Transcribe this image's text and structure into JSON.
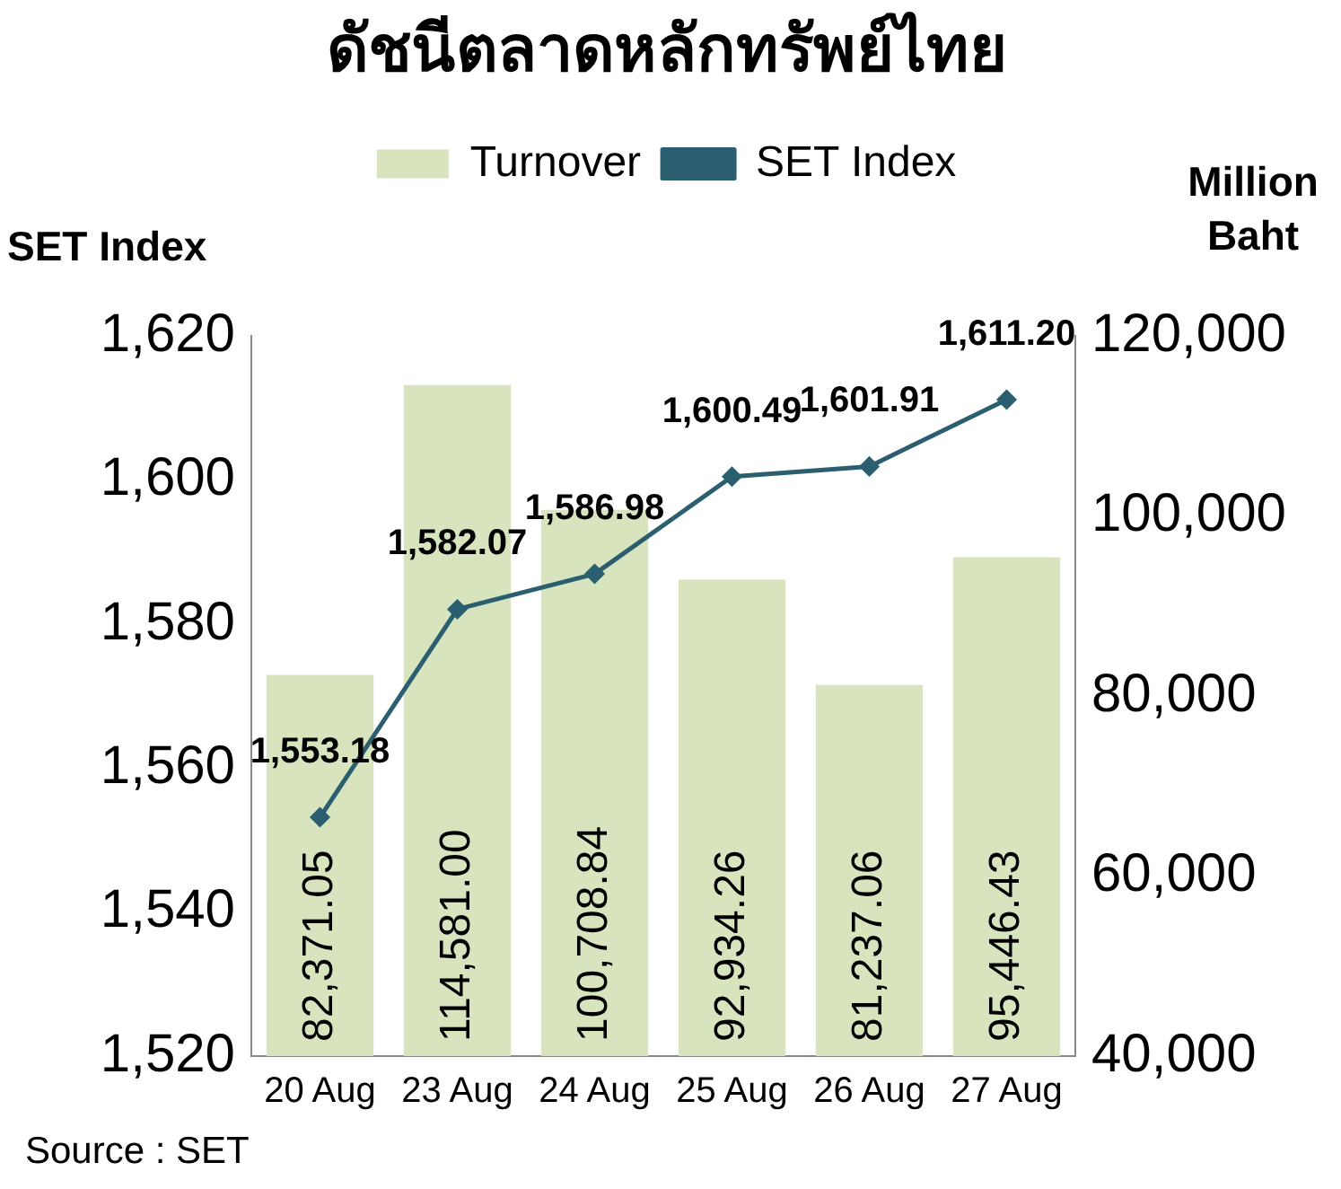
{
  "chart_data": {
    "type": "bar",
    "title": "ดัชนีตลาดหลักทรัพย์ไทย",
    "ylabel": "SET Index",
    "y2label": "Million Baht",
    "categories": [
      "20 Aug",
      "23 Aug",
      "24 Aug",
      "25 Aug",
      "26 Aug",
      "27 Aug"
    ],
    "series": [
      {
        "name": "Turnover",
        "axis": "y2",
        "color": "#d7e4bd",
        "values": [
          82371.05,
          114581.0,
          100708.84,
          92934.26,
          81237.06,
          95446.43
        ],
        "value_labels": [
          "82,371.05",
          "114,581.00",
          "100,708.84",
          "92,934.26",
          "81,237.06",
          "95,446.43"
        ]
      },
      {
        "name": "SET Index",
        "type": "line",
        "axis": "y",
        "color": "#2b5f6f",
        "marker": "diamond",
        "values": [
          1553.18,
          1582.07,
          1586.98,
          1600.49,
          1601.91,
          1611.2
        ],
        "value_labels": [
          "1,553.18",
          "1,582.07",
          "1,586.98",
          "1,600.49",
          "1,601.91",
          "1,611.20"
        ]
      }
    ],
    "ylim": [
      1520,
      1620
    ],
    "yticks": [
      {
        "value": 1520,
        "label": "1,520"
      },
      {
        "value": 1540,
        "label": "1,540"
      },
      {
        "value": 1560,
        "label": "1,560"
      },
      {
        "value": 1580,
        "label": "1,580"
      },
      {
        "value": 1600,
        "label": "1,600"
      },
      {
        "value": 1620,
        "label": "1,620"
      }
    ],
    "y2lim": [
      40000,
      120000
    ],
    "y2ticks": [
      {
        "value": 40000,
        "label": "40,000"
      },
      {
        "value": 60000,
        "label": "60,000"
      },
      {
        "value": 80000,
        "label": "80,000"
      },
      {
        "value": 100000,
        "label": "100,000"
      },
      {
        "value": 120000,
        "label": "120,000"
      }
    ],
    "grid": false,
    "legend": "top",
    "annotations": [
      "Source : SET"
    ]
  }
}
